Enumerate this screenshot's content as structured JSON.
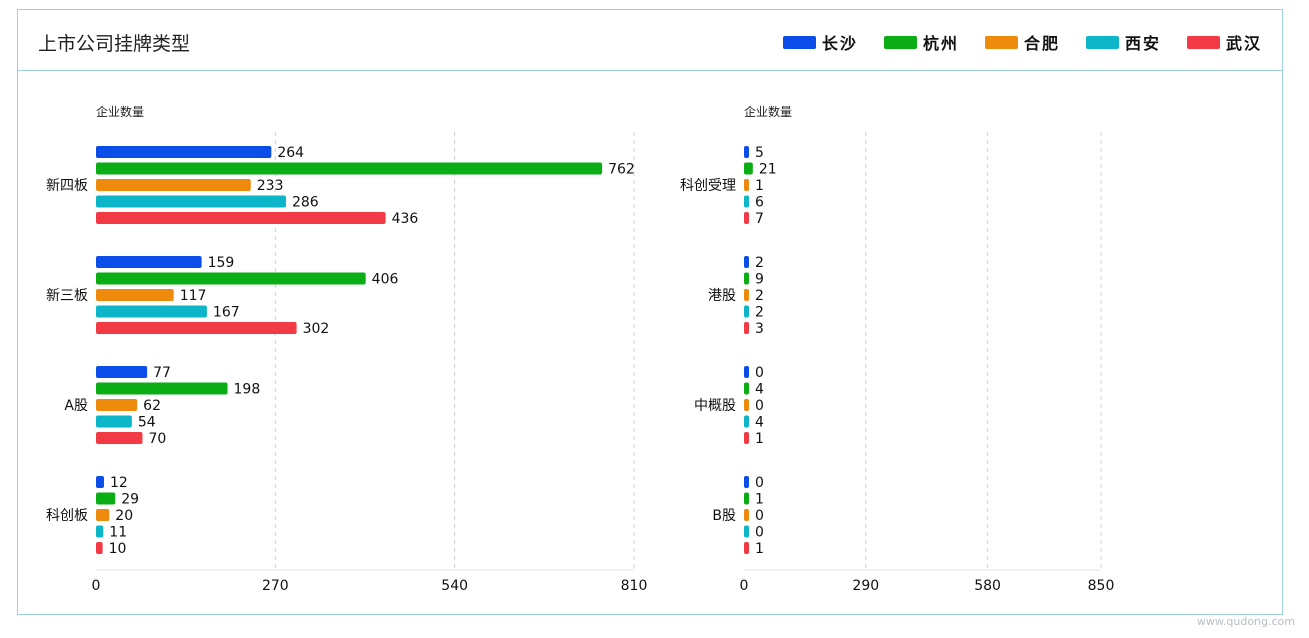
{
  "title": "上市公司挂牌类型",
  "legend": [
    {
      "name": "长沙",
      "color": "#0a4de8"
    },
    {
      "name": "杭州",
      "color": "#0aad14"
    },
    {
      "name": "合肥",
      "color": "#ee8a0c"
    },
    {
      "name": "西安",
      "color": "#0cb6c8"
    },
    {
      "name": "武汉",
      "color": "#f23a44"
    }
  ],
  "watermark": "www.qudong.com",
  "chart_data": [
    {
      "type": "bar",
      "orientation": "horizontal",
      "ylabel": "企业数量",
      "categories": [
        "新四板",
        "新三板",
        "A股",
        "科创板"
      ],
      "xlim": [
        0,
        810
      ],
      "xticks": [
        0,
        270,
        540,
        810
      ],
      "grid": true,
      "series": [
        {
          "name": "长沙",
          "values": [
            264,
            159,
            77,
            12
          ]
        },
        {
          "name": "杭州",
          "values": [
            762,
            406,
            198,
            29
          ]
        },
        {
          "name": "合肥",
          "values": [
            233,
            117,
            62,
            20
          ]
        },
        {
          "name": "西安",
          "values": [
            286,
            167,
            54,
            11
          ]
        },
        {
          "name": "武汉",
          "values": [
            436,
            302,
            70,
            10
          ]
        }
      ]
    },
    {
      "type": "bar",
      "orientation": "horizontal",
      "ylabel": "企业数量",
      "categories": [
        "科创受理",
        "港股",
        "中概股",
        "B股"
      ],
      "xlim": [
        0,
        850
      ],
      "xticks": [
        0,
        290,
        580,
        850
      ],
      "grid": true,
      "series": [
        {
          "name": "长沙",
          "values": [
            5,
            2,
            0,
            0
          ]
        },
        {
          "name": "杭州",
          "values": [
            21,
            9,
            4,
            1
          ]
        },
        {
          "name": "合肥",
          "values": [
            1,
            2,
            0,
            0
          ]
        },
        {
          "name": "西安",
          "values": [
            6,
            2,
            4,
            0
          ]
        },
        {
          "name": "武汉",
          "values": [
            7,
            3,
            1,
            1
          ]
        }
      ]
    }
  ]
}
